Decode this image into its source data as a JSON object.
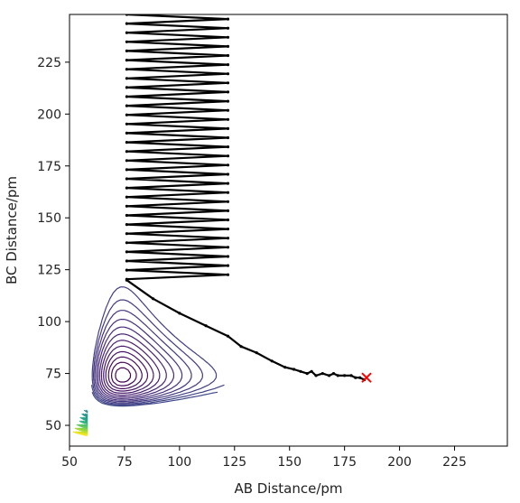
{
  "chart_data": {
    "type": "contour",
    "title": "",
    "xlabel": "AB Distance/pm",
    "ylabel": "BC Distance/pm",
    "xlim": [
      50,
      249
    ],
    "ylim": [
      40,
      248
    ],
    "xticks": [
      "50",
      "75",
      "100",
      "125",
      "150",
      "175",
      "200",
      "225"
    ],
    "yticks": [
      "50",
      "75",
      "100",
      "125",
      "150",
      "175",
      "200",
      "225"
    ],
    "colormap": "viridis",
    "contour_levels": 60,
    "surface": {
      "well_bottom_pm": 74,
      "barrier_saddle_pm": [
        93,
        92
      ],
      "contour_fill": false
    },
    "trajectory": {
      "color": "#000000",
      "marker": "dot",
      "start_region": {
        "ab_pm": [
          76,
          122
        ],
        "bc_pm": [
          120,
          248
        ]
      },
      "path_ab_pm": [
        76,
        88,
        100,
        112,
        122,
        128,
        135,
        142,
        148,
        152,
        155,
        158,
        160,
        162,
        165,
        168,
        170,
        172,
        175,
        178,
        180,
        182,
        184
      ],
      "path_bc_pm": [
        120,
        111,
        104,
        98,
        93,
        88,
        85,
        81,
        78,
        77,
        76,
        75,
        76,
        74,
        75,
        74,
        75,
        74,
        74,
        74,
        73,
        73,
        72
      ]
    },
    "end_marker": {
      "ab_pm": 185,
      "bc_pm": 73,
      "symbol": "x",
      "color": "#ff0000"
    }
  }
}
